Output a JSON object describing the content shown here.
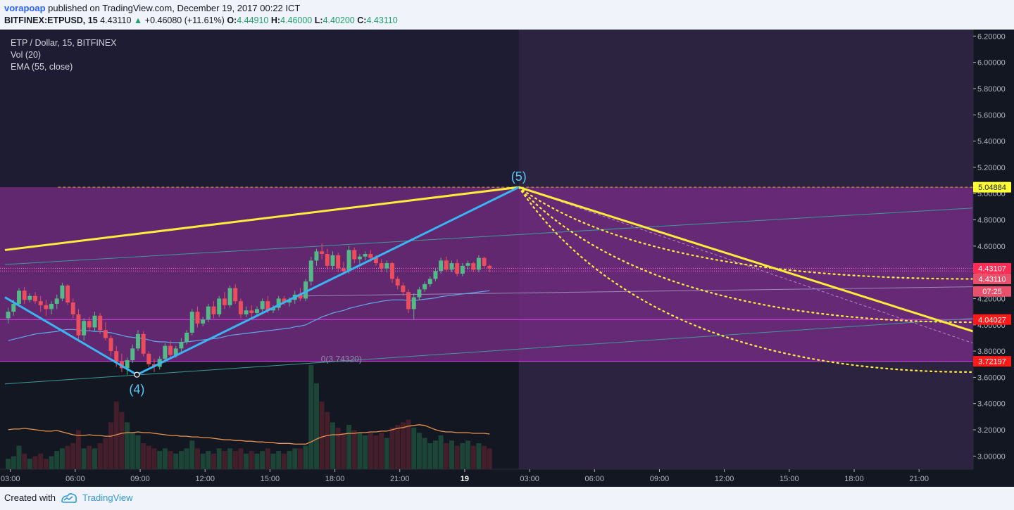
{
  "header": {
    "user": "vorapoap",
    "published_text": "published on TradingView.com, December 19, 2017 00:22 ICT",
    "symbol": "BITFINEX:ETPUSD, 15",
    "last": "4.43110",
    "change": "+0.46080 (+11.61%)",
    "o_label": "O:",
    "o": "4.44910",
    "h_label": "H:",
    "h": "4.46000",
    "l_label": "L:",
    "l": "4.40200",
    "c_label": "C:",
    "c": "4.43110"
  },
  "legend": {
    "line1": "ETP / Dollar, 15, BITFINEX",
    "line2": "Vol (20)",
    "line3": "EMA (55, close)"
  },
  "footer": {
    "created_with": "Created with",
    "brand": "TradingView"
  },
  "chart_data": {
    "type": "candlestick",
    "x_ticks": [
      {
        "label": "03:00",
        "t": 0
      },
      {
        "label": "06:00",
        "t": 3
      },
      {
        "label": "09:00",
        "t": 6
      },
      {
        "label": "12:00",
        "t": 9
      },
      {
        "label": "15:00",
        "t": 12
      },
      {
        "label": "18:00",
        "t": 15
      },
      {
        "label": "21:00",
        "t": 18
      },
      {
        "label": "19",
        "t": 21
      },
      {
        "label": "03:00",
        "t": 24
      },
      {
        "label": "06:00",
        "t": 27
      },
      {
        "label": "09:00",
        "t": 30
      },
      {
        "label": "12:00",
        "t": 33
      },
      {
        "label": "15:00",
        "t": 36
      },
      {
        "label": "18:00",
        "t": 39
      },
      {
        "label": "21:00",
        "t": 42
      }
    ],
    "t_range": [
      -0.25,
      44.5
    ],
    "ylim": [
      2.9,
      6.25
    ],
    "y_ticks": [
      "6.20000",
      "6.00000",
      "5.80000",
      "5.60000",
      "5.40000",
      "5.20000",
      "5.00000",
      "4.80000",
      "4.60000",
      "4.40000",
      "4.20000",
      "4.00000",
      "3.80000",
      "3.60000",
      "3.40000",
      "3.20000",
      "3.00000"
    ],
    "y_tick_values": [
      6.2,
      6.0,
      5.8,
      5.6,
      5.4,
      5.2,
      5.0,
      4.8,
      4.6,
      4.4,
      4.2,
      4.0,
      3.8,
      3.6,
      3.4,
      3.2,
      3.0
    ],
    "candles_t_start": -0.1,
    "candles_t_step": 0.25,
    "candles": [
      [
        4.05,
        4.13,
        4.01,
        4.1
      ],
      [
        4.1,
        4.19,
        4.07,
        4.16
      ],
      [
        4.16,
        4.28,
        4.14,
        4.26
      ],
      [
        4.26,
        4.29,
        4.16,
        4.19
      ],
      [
        4.19,
        4.24,
        4.17,
        4.22
      ],
      [
        4.22,
        4.25,
        4.16,
        4.18
      ],
      [
        4.18,
        4.22,
        4.1,
        4.15
      ],
      [
        4.15,
        4.19,
        4.07,
        4.12
      ],
      [
        4.12,
        4.18,
        4.08,
        4.16
      ],
      [
        4.16,
        4.23,
        4.12,
        4.2
      ],
      [
        4.2,
        4.32,
        4.18,
        4.3
      ],
      [
        4.3,
        4.31,
        4.15,
        4.17
      ],
      [
        4.17,
        4.2,
        4.05,
        4.08
      ],
      [
        4.08,
        4.12,
        3.88,
        3.92
      ],
      [
        3.92,
        4.05,
        3.88,
        4.03
      ],
      [
        4.03,
        4.06,
        3.95,
        3.98
      ],
      [
        3.98,
        4.1,
        3.95,
        4.07
      ],
      [
        4.07,
        4.09,
        3.93,
        3.96
      ],
      [
        3.96,
        4.02,
        3.88,
        3.9
      ],
      [
        3.9,
        3.92,
        3.76,
        3.8
      ],
      [
        3.8,
        3.84,
        3.68,
        3.72
      ],
      [
        3.72,
        3.78,
        3.64,
        3.67
      ],
      [
        3.67,
        3.75,
        3.62,
        3.73
      ],
      [
        3.73,
        3.85,
        3.71,
        3.82
      ],
      [
        3.82,
        3.96,
        3.8,
        3.93
      ],
      [
        3.93,
        3.95,
        3.76,
        3.78
      ],
      [
        3.78,
        3.8,
        3.68,
        3.7
      ],
      [
        3.7,
        3.74,
        3.64,
        3.68
      ],
      [
        3.68,
        3.76,
        3.66,
        3.74
      ],
      [
        3.74,
        3.86,
        3.71,
        3.84
      ],
      [
        3.84,
        3.88,
        3.74,
        3.77
      ],
      [
        3.77,
        3.84,
        3.75,
        3.82
      ],
      [
        3.82,
        3.9,
        3.79,
        3.87
      ],
      [
        3.87,
        3.96,
        3.85,
        3.94
      ],
      [
        3.94,
        4.12,
        3.92,
        4.1
      ],
      [
        4.1,
        4.14,
        3.98,
        4.01
      ],
      [
        4.01,
        4.06,
        3.99,
        4.04
      ],
      [
        4.04,
        4.16,
        4.02,
        4.14
      ],
      [
        4.14,
        4.18,
        4.05,
        4.08
      ],
      [
        4.08,
        4.22,
        4.06,
        4.2
      ],
      [
        4.2,
        4.25,
        4.12,
        4.15
      ],
      [
        4.15,
        4.3,
        4.13,
        4.28
      ],
      [
        4.28,
        4.31,
        4.16,
        4.18
      ],
      [
        4.18,
        4.2,
        4.05,
        4.08
      ],
      [
        4.08,
        4.14,
        4.06,
        4.11
      ],
      [
        4.11,
        4.15,
        4.06,
        4.09
      ],
      [
        4.09,
        4.14,
        4.07,
        4.12
      ],
      [
        4.12,
        4.2,
        4.1,
        4.18
      ],
      [
        4.18,
        4.22,
        4.09,
        4.11
      ],
      [
        4.11,
        4.15,
        4.09,
        4.13
      ],
      [
        4.13,
        4.22,
        4.11,
        4.2
      ],
      [
        4.2,
        4.22,
        4.15,
        4.17
      ],
      [
        4.17,
        4.21,
        4.14,
        4.19
      ],
      [
        4.19,
        4.26,
        4.16,
        4.23
      ],
      [
        4.23,
        4.28,
        4.18,
        4.2
      ],
      [
        4.2,
        4.35,
        4.18,
        4.33
      ],
      [
        4.33,
        4.52,
        4.3,
        4.49
      ],
      [
        4.49,
        4.58,
        4.45,
        4.56
      ],
      [
        4.56,
        4.62,
        4.5,
        4.54
      ],
      [
        4.54,
        4.58,
        4.42,
        4.45
      ],
      [
        4.45,
        4.56,
        4.42,
        4.53
      ],
      [
        4.53,
        4.55,
        4.4,
        4.43
      ],
      [
        4.43,
        4.48,
        4.38,
        4.41
      ],
      [
        4.41,
        4.6,
        4.39,
        4.57
      ],
      [
        4.57,
        4.59,
        4.47,
        4.5
      ],
      [
        4.5,
        4.54,
        4.45,
        4.52
      ],
      [
        4.52,
        4.56,
        4.49,
        4.54
      ],
      [
        4.54,
        4.57,
        4.48,
        4.51
      ],
      [
        4.51,
        4.53,
        4.45,
        4.47
      ],
      [
        4.47,
        4.5,
        4.4,
        4.43
      ],
      [
        4.43,
        4.49,
        4.4,
        4.47
      ],
      [
        4.47,
        4.48,
        4.32,
        4.35
      ],
      [
        4.35,
        4.37,
        4.27,
        4.3
      ],
      [
        4.3,
        4.32,
        4.22,
        4.25
      ],
      [
        4.25,
        4.27,
        4.09,
        4.12
      ],
      [
        4.12,
        4.24,
        4.04,
        4.21
      ],
      [
        4.21,
        4.29,
        4.19,
        4.27
      ],
      [
        4.27,
        4.33,
        4.25,
        4.31
      ],
      [
        4.31,
        4.37,
        4.29,
        4.35
      ],
      [
        4.35,
        4.43,
        4.33,
        4.41
      ],
      [
        4.41,
        4.51,
        4.39,
        4.49
      ],
      [
        4.49,
        4.52,
        4.4,
        4.42
      ],
      [
        4.42,
        4.49,
        4.4,
        4.47
      ],
      [
        4.47,
        4.5,
        4.37,
        4.39
      ],
      [
        4.39,
        4.47,
        4.37,
        4.45
      ],
      [
        4.45,
        4.49,
        4.42,
        4.47
      ],
      [
        4.47,
        4.48,
        4.4,
        4.42
      ],
      [
        4.42,
        4.53,
        4.4,
        4.51
      ],
      [
        4.51,
        4.52,
        4.43,
        4.45
      ],
      [
        4.45,
        4.46,
        4.4,
        4.43
      ]
    ],
    "volumes": [
      4,
      5,
      9,
      6,
      4,
      5,
      6,
      4,
      5,
      7,
      8,
      9,
      10,
      15,
      8,
      9,
      8,
      10,
      12,
      18,
      26,
      22,
      18,
      14,
      13,
      10,
      9,
      8,
      7,
      8,
      7,
      6,
      7,
      8,
      11,
      8,
      6,
      7,
      6,
      8,
      7,
      8,
      7,
      8,
      6,
      7,
      6,
      7,
      8,
      6,
      7,
      6,
      7,
      8,
      8,
      9,
      40,
      33,
      26,
      22,
      18,
      16,
      14,
      17,
      15,
      14,
      13,
      14,
      13,
      14,
      12,
      16,
      17,
      18,
      19,
      16,
      14,
      12,
      10,
      11,
      13,
      10,
      11,
      9,
      10,
      11,
      9,
      10,
      9,
      8
    ],
    "ema55": [
      3.88,
      3.89,
      3.9,
      3.91,
      3.92,
      3.93,
      3.935,
      3.94,
      3.945,
      3.95,
      3.96,
      3.965,
      3.965,
      3.96,
      3.955,
      3.955,
      3.95,
      3.95,
      3.945,
      3.94,
      3.93,
      3.92,
      3.91,
      3.905,
      3.9,
      3.895,
      3.885,
      3.875,
      3.87,
      3.87,
      3.865,
      3.865,
      3.865,
      3.87,
      3.875,
      3.88,
      3.885,
      3.89,
      3.895,
      3.9,
      3.91,
      3.92,
      3.925,
      3.93,
      3.935,
      3.94,
      3.945,
      3.95,
      3.955,
      3.96,
      3.965,
      3.97,
      3.975,
      3.985,
      3.99,
      4.0,
      4.02,
      4.04,
      4.06,
      4.075,
      4.09,
      4.1,
      4.11,
      4.125,
      4.135,
      4.145,
      4.155,
      4.165,
      4.17,
      4.18,
      4.185,
      4.19,
      4.19,
      4.19,
      4.185,
      4.185,
      4.19,
      4.195,
      4.2,
      4.205,
      4.215,
      4.22,
      4.225,
      4.23,
      4.235,
      4.24,
      4.245,
      4.25,
      4.255,
      4.26
    ],
    "vol_ma": [
      0.55,
      0.56,
      0.56,
      0.57,
      0.56,
      0.55,
      0.54,
      0.53,
      0.53,
      0.54,
      0.52,
      0.5,
      0.48,
      0.47,
      0.47,
      0.48,
      0.47,
      0.47,
      0.46,
      0.46,
      0.48,
      0.5,
      0.51,
      0.51,
      0.52,
      0.51,
      0.51,
      0.5,
      0.49,
      0.48,
      0.47,
      0.47,
      0.46,
      0.46,
      0.45,
      0.45,
      0.44,
      0.44,
      0.43,
      0.42,
      0.41,
      0.41,
      0.4,
      0.4,
      0.39,
      0.39,
      0.38,
      0.38,
      0.37,
      0.37,
      0.36,
      0.36,
      0.36,
      0.35,
      0.35,
      0.35,
      0.38,
      0.42,
      0.45,
      0.47,
      0.48,
      0.48,
      0.49,
      0.5,
      0.5,
      0.51,
      0.51,
      0.52,
      0.52,
      0.53,
      0.53,
      0.55,
      0.57,
      0.58,
      0.6,
      0.61,
      0.62,
      0.61,
      0.58,
      0.55,
      0.53,
      0.52,
      0.52,
      0.51,
      0.51,
      0.51,
      0.5,
      0.5,
      0.5,
      0.49
    ],
    "rect_zone": {
      "top": 5.04884,
      "bottom": 3.72197
    },
    "hlines": [
      {
        "price": 5.04884,
        "style": "dashed-orange",
        "t_start": 2.2
      },
      {
        "price": 4.43107,
        "style": "dotted-pink"
      },
      {
        "price": 4.04027,
        "style": "solid-magenta"
      },
      {
        "price": 3.72197,
        "style": "solid-magenta"
      }
    ],
    "wave_points": [
      {
        "label": "(4)",
        "t": -0.25,
        "price": 4.21
      },
      {
        "label": "(4)",
        "t": 5.85,
        "price": 3.62
      },
      {
        "label": "(5)",
        "t": 23.5,
        "price": 5.04884
      }
    ],
    "trendlines": [
      {
        "kind": "yellow",
        "t1": -0.25,
        "p1": 4.57,
        "t2": 23.5,
        "p2": 5.04884
      },
      {
        "kind": "yellow",
        "t1": 23.5,
        "p1": 5.04884,
        "t2": 44.5,
        "p2": 3.95
      },
      {
        "kind": "teal",
        "t1": -0.25,
        "p1": 4.46,
        "t2": 44.5,
        "p2": 4.89
      },
      {
        "kind": "teal",
        "t1": -0.25,
        "p1": 3.55,
        "t2": 44.5,
        "p2": 4.05
      },
      {
        "kind": "lav",
        "t1": 13.5,
        "p1": 4.22,
        "t2": 44.5,
        "p2": 4.29
      }
    ],
    "fib_text": "0(3.74320)",
    "fib_price": 3.7432,
    "fan_curves": [
      {
        "end_price": 4.35
      },
      {
        "end_price": 4.02
      },
      {
        "end_price": 3.64
      }
    ],
    "price_tags": [
      {
        "text": "5.04884",
        "price": 5.04884,
        "bg": "#ffff33",
        "fg": "#131722"
      },
      {
        "text": "4.43107",
        "price": 4.43107,
        "bg": "#ff2d55",
        "fg": "#ffffff"
      },
      {
        "text": "4.43110",
        "price": 4.35,
        "bg": "#e8506c",
        "fg": "#ffffff"
      },
      {
        "text": "07:25",
        "price": 4.255,
        "bg": "#e8506c",
        "fg": "#ffffff"
      },
      {
        "text": "4.04027",
        "price": 4.04027,
        "bg": "#ff1a1a",
        "fg": "#ffffff"
      },
      {
        "text": "3.72197",
        "price": 3.72197,
        "bg": "#ff1a1a",
        "fg": "#ffffff"
      }
    ],
    "colors": {
      "bg": "#131722",
      "history_bg": "#1e1c33",
      "future_bg": "#2b2340",
      "zone": "#7b2d86",
      "up": "#53b987",
      "down": "#eb4d5c",
      "ema": "#5fa9e8",
      "volma": "#e8924e",
      "yellow": "#ffeb3b",
      "blue": "#3ab4f2",
      "teal": "#3d9a9a",
      "magenta": "#c43dd2",
      "axis_text": "#b2b5be",
      "axis_bg": "#131722",
      "label_blue": "#55c8f5"
    }
  }
}
